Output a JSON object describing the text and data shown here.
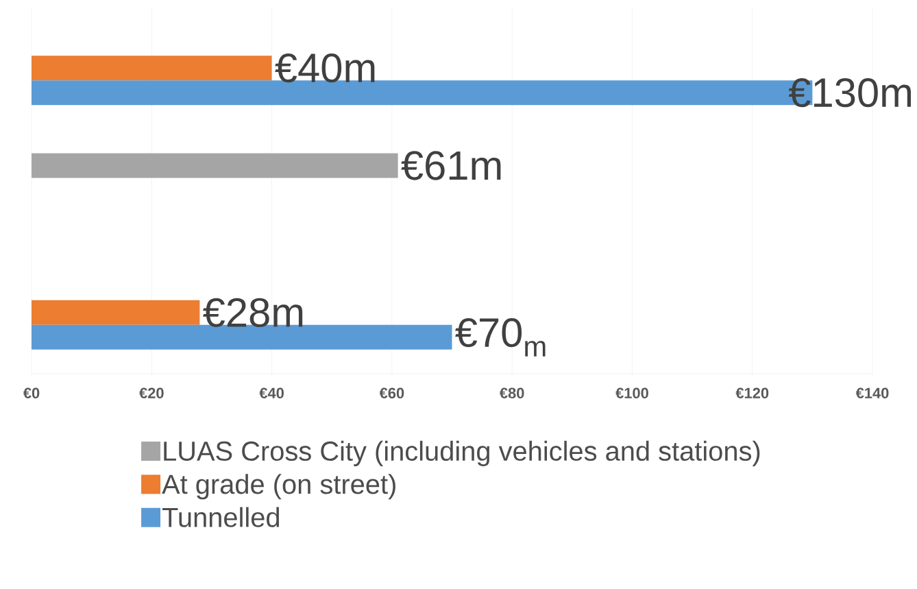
{
  "chart_data": {
    "type": "bar",
    "orientation": "horizontal",
    "categories": [
      null,
      null,
      null
    ],
    "series": [
      {
        "name": "LUAS Cross City (including vehicles and stations)",
        "color": "#a5a5a5",
        "values": [
          null,
          61,
          null
        ],
        "value_labels": [
          null,
          "€61m",
          null
        ]
      },
      {
        "name": "At grade (on street)",
        "color": "#ed7d31",
        "values": [
          40,
          null,
          28
        ],
        "value_labels": [
          "€40m",
          null,
          "€28m"
        ]
      },
      {
        "name": "Tunnelled",
        "color": "#5b9bd5",
        "values": [
          130,
          null,
          70
        ],
        "value_labels": [
          "€130m",
          null,
          "€70$_{m}$"
        ]
      }
    ],
    "xlim": [
      0,
      140
    ],
    "xticks": [
      {
        "value": 0,
        "label": "€0"
      },
      {
        "value": 20,
        "label": "€20"
      },
      {
        "value": 40,
        "label": "€40"
      },
      {
        "value": 60,
        "label": "€60"
      },
      {
        "value": 80,
        "label": "€80"
      },
      {
        "value": 100,
        "label": "€100"
      },
      {
        "value": 120,
        "label": "€120"
      },
      {
        "value": 140,
        "label": "€140"
      }
    ],
    "grid": "x",
    "legend": "bottom"
  }
}
